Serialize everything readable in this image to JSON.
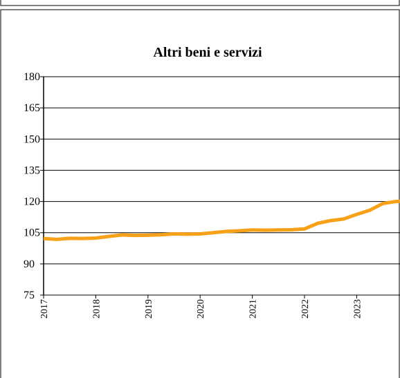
{
  "chart_data": {
    "type": "line",
    "title": "Altri beni e servizi",
    "x": [
      2017.0,
      2017.25,
      2017.5,
      2017.75,
      2018.0,
      2018.25,
      2018.5,
      2018.75,
      2019.0,
      2019.25,
      2019.5,
      2019.75,
      2020.0,
      2020.25,
      2020.5,
      2020.75,
      2021.0,
      2021.25,
      2021.5,
      2021.75,
      2022.0,
      2022.25,
      2022.5,
      2022.75,
      2023.0,
      2023.25,
      2023.5,
      2023.75,
      2023.83
    ],
    "series": [
      {
        "name": "Altri beni e servizi",
        "color": "#f7a11a",
        "values": [
          102.2,
          101.8,
          102.3,
          102.2,
          102.4,
          103.2,
          103.9,
          103.7,
          103.8,
          104.0,
          104.4,
          104.3,
          104.4,
          105.0,
          105.6,
          105.9,
          106.3,
          106.2,
          106.3,
          106.4,
          106.8,
          109.5,
          110.8,
          111.6,
          113.8,
          115.8,
          119.0,
          120.0,
          120.1
        ]
      }
    ],
    "xlim": [
      2017,
      2023.83
    ],
    "xticks": [
      2017,
      2018,
      2019,
      2020,
      2021,
      2022,
      2023
    ],
    "ylim": [
      75,
      180
    ],
    "yticks": [
      75,
      90,
      105,
      120,
      135,
      150,
      165,
      180
    ],
    "grid": true
  }
}
